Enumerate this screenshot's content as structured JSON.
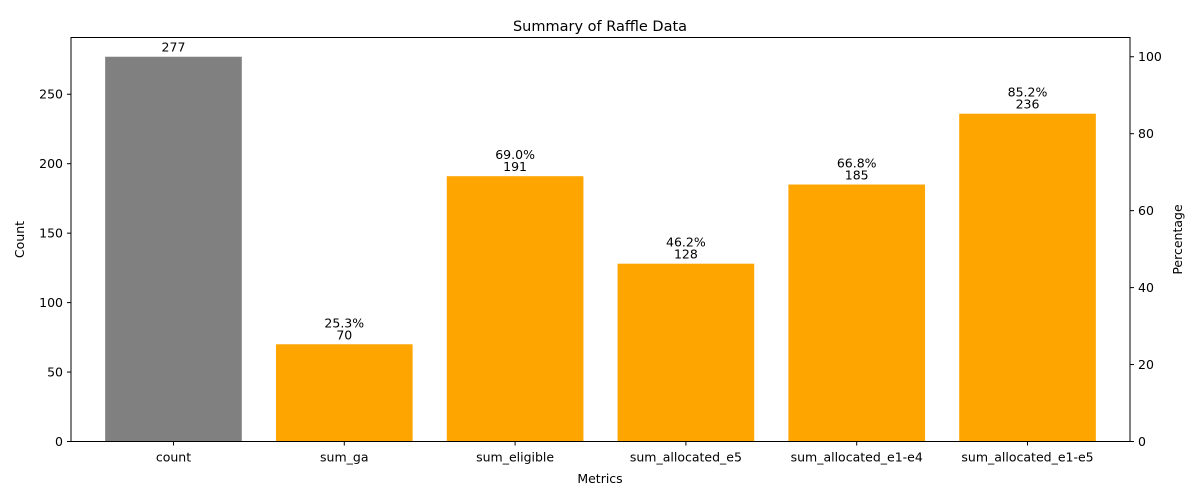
{
  "chart_data": {
    "type": "bar",
    "title": "Summary of Raffle Data",
    "xlabel": "Metrics",
    "ylabel": "Count",
    "y2label": "Percentage",
    "categories": [
      "count",
      "sum_ga",
      "sum_eligible",
      "sum_allocated_e5",
      "sum_allocated_e1-e4",
      "sum_allocated_e1-e5"
    ],
    "values": [
      277,
      70,
      191,
      128,
      185,
      236
    ],
    "value_labels": [
      "277",
      "70",
      "191",
      "128",
      "185",
      "236"
    ],
    "percent_labels": [
      "",
      "25.3%",
      "69.0%",
      "46.2%",
      "66.8%",
      "85.2%"
    ],
    "bar_colors": [
      "#808080",
      "#ffa500",
      "#ffa500",
      "#ffa500",
      "#ffa500",
      "#ffa500"
    ],
    "ylim": [
      0,
      290.85
    ],
    "y_ticks": [
      0,
      50,
      100,
      150,
      200,
      250
    ],
    "y2lim": [
      0,
      105
    ],
    "y2_ticks": [
      0,
      20,
      40,
      60,
      80,
      100
    ],
    "grid": false,
    "ylabel_color": "#008000",
    "y2label_color": "#0000ff"
  }
}
